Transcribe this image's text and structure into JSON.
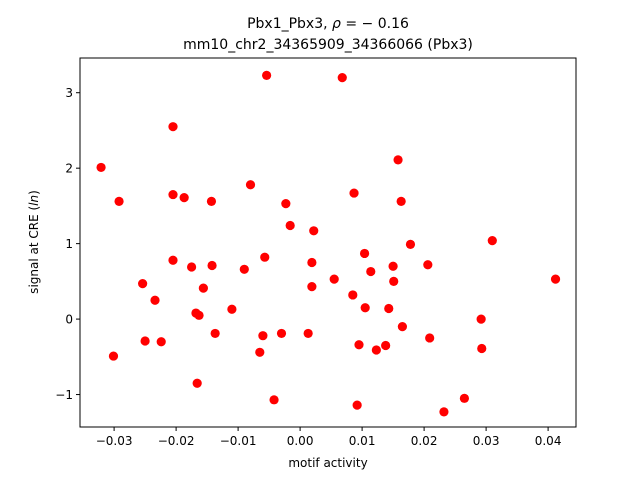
{
  "chart_data": {
    "type": "scatter",
    "title_line1_prefix": "Pbx1_Pbx3, ",
    "title_rho_symbol": "ρ",
    "title_rho_suffix": " = − 0.16",
    "title_line2": "mm10_chr2_34365909_34366066 (Pbx3)",
    "xlabel": "motif activity",
    "ylabel_prefix": "signal at CRE (",
    "ylabel_italic": "ln",
    "ylabel_suffix": ")",
    "xlim": [
      -0.0355,
      0.0445
    ],
    "ylim": [
      -1.43,
      3.46
    ],
    "x_ticks": [
      -0.03,
      -0.02,
      -0.01,
      0.0,
      0.01,
      0.02,
      0.03,
      0.04
    ],
    "x_tick_labels": [
      "−0.03",
      "−0.02",
      "−0.01",
      "0.00",
      "0.01",
      "0.02",
      "0.03",
      "0.04"
    ],
    "y_ticks": [
      -1,
      0,
      1,
      2,
      3
    ],
    "y_tick_labels": [
      "−1",
      "0",
      "1",
      "2",
      "3"
    ],
    "marker_color": "#ff0000",
    "grid": false,
    "points": [
      {
        "x": -0.0321,
        "y": 2.01
      },
      {
        "x": -0.0301,
        "y": -0.49
      },
      {
        "x": -0.0292,
        "y": 1.56
      },
      {
        "x": -0.0254,
        "y": 0.47
      },
      {
        "x": -0.025,
        "y": -0.29
      },
      {
        "x": -0.0234,
        "y": 0.25
      },
      {
        "x": -0.0224,
        "y": -0.3
      },
      {
        "x": -0.0205,
        "y": 2.55
      },
      {
        "x": -0.0205,
        "y": 1.65
      },
      {
        "x": -0.0205,
        "y": 0.78
      },
      {
        "x": -0.0187,
        "y": 1.61
      },
      {
        "x": -0.0175,
        "y": 0.69
      },
      {
        "x": -0.0168,
        "y": 0.08
      },
      {
        "x": -0.0166,
        "y": -0.85
      },
      {
        "x": -0.0163,
        "y": 0.05
      },
      {
        "x": -0.0156,
        "y": 0.41
      },
      {
        "x": -0.0143,
        "y": 1.56
      },
      {
        "x": -0.0142,
        "y": 0.71
      },
      {
        "x": -0.0137,
        "y": -0.19
      },
      {
        "x": -0.011,
        "y": 0.13
      },
      {
        "x": -0.009,
        "y": 0.66
      },
      {
        "x": -0.008,
        "y": 1.78
      },
      {
        "x": -0.0065,
        "y": -0.44
      },
      {
        "x": -0.006,
        "y": -0.22
      },
      {
        "x": -0.0057,
        "y": 0.82
      },
      {
        "x": -0.0054,
        "y": 3.23
      },
      {
        "x": -0.0042,
        "y": -1.07
      },
      {
        "x": -0.003,
        "y": -0.19
      },
      {
        "x": -0.0023,
        "y": 1.53
      },
      {
        "x": -0.0016,
        "y": 1.24
      },
      {
        "x": 0.0013,
        "y": -0.19
      },
      {
        "x": 0.0019,
        "y": 0.43
      },
      {
        "x": 0.0019,
        "y": 0.75
      },
      {
        "x": 0.0022,
        "y": 1.17
      },
      {
        "x": 0.0055,
        "y": 0.53
      },
      {
        "x": 0.0068,
        "y": 3.2
      },
      {
        "x": 0.0085,
        "y": 0.32
      },
      {
        "x": 0.0087,
        "y": 1.67
      },
      {
        "x": 0.0092,
        "y": -1.14
      },
      {
        "x": 0.0095,
        "y": -0.34
      },
      {
        "x": 0.0104,
        "y": 0.87
      },
      {
        "x": 0.0105,
        "y": 0.15
      },
      {
        "x": 0.0114,
        "y": 0.63
      },
      {
        "x": 0.0123,
        "y": -0.41
      },
      {
        "x": 0.0138,
        "y": -0.35
      },
      {
        "x": 0.0143,
        "y": 0.14
      },
      {
        "x": 0.015,
        "y": 0.7
      },
      {
        "x": 0.0151,
        "y": 0.5
      },
      {
        "x": 0.0158,
        "y": 2.11
      },
      {
        "x": 0.0163,
        "y": 1.56
      },
      {
        "x": 0.0165,
        "y": -0.1
      },
      {
        "x": 0.0178,
        "y": 0.99
      },
      {
        "x": 0.0206,
        "y": 0.72
      },
      {
        "x": 0.0209,
        "y": -0.25
      },
      {
        "x": 0.0232,
        "y": -1.23
      },
      {
        "x": 0.0265,
        "y": -1.05
      },
      {
        "x": 0.0292,
        "y": 0.0
      },
      {
        "x": 0.0293,
        "y": -0.39
      },
      {
        "x": 0.031,
        "y": 1.04
      },
      {
        "x": 0.0412,
        "y": 0.53
      }
    ]
  }
}
